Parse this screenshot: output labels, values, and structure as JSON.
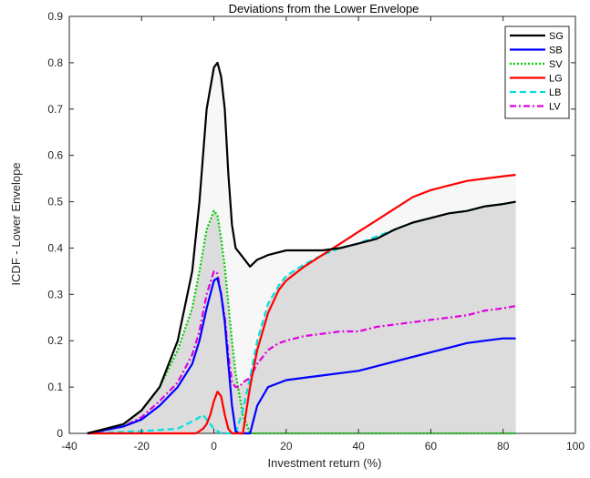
{
  "chart_data": {
    "type": "area",
    "title": "Deviations from the Lower Envelope",
    "xlabel": "Investment return (%)",
    "ylabel": "ICDF - Lower Envelope",
    "xlim": [
      -40,
      100
    ],
    "ylim": [
      0,
      0.9
    ],
    "xticks": [
      -40,
      -20,
      0,
      20,
      40,
      60,
      80,
      100
    ],
    "yticks": [
      0,
      0.1,
      0.2,
      0.3,
      0.4,
      0.5,
      0.6,
      0.7,
      0.8,
      0.9
    ],
    "xtick_labels": [
      "-40",
      "-20",
      "0",
      "20",
      "40",
      "60",
      "80",
      "100"
    ],
    "ytick_labels": [
      "0",
      "0.1",
      "0.2",
      "0.3",
      "0.4",
      "0.5",
      "0.6",
      "0.7",
      "0.8",
      "0.9"
    ],
    "grid": false,
    "legend_position": "top-right",
    "series": [
      {
        "name": "SG",
        "color": "#000000",
        "dash": "solid",
        "x": [
          -35,
          -25,
          -20,
          -15,
          -10,
          -6,
          -4,
          -2,
          0,
          1,
          2,
          3,
          4,
          5,
          6,
          8,
          10,
          12,
          15,
          20,
          25,
          30,
          35,
          40,
          45,
          50,
          55,
          60,
          65,
          70,
          75,
          80,
          83.5
        ],
        "y": [
          0,
          0.02,
          0.05,
          0.1,
          0.2,
          0.35,
          0.5,
          0.7,
          0.79,
          0.8,
          0.77,
          0.7,
          0.56,
          0.45,
          0.4,
          0.38,
          0.36,
          0.375,
          0.385,
          0.395,
          0.395,
          0.395,
          0.4,
          0.41,
          0.42,
          0.44,
          0.455,
          0.465,
          0.475,
          0.48,
          0.49,
          0.495,
          0.5
        ]
      },
      {
        "name": "SB",
        "color": "#0000ff",
        "dash": "solid",
        "x": [
          -35,
          -25,
          -20,
          -15,
          -10,
          -6,
          -4,
          -2,
          0,
          1,
          2,
          3,
          4,
          5,
          6,
          7,
          8,
          10,
          12,
          15,
          20,
          25,
          30,
          35,
          40,
          45,
          50,
          55,
          60,
          65,
          70,
          75,
          80,
          83.5
        ],
        "y": [
          0,
          0.015,
          0.03,
          0.06,
          0.1,
          0.15,
          0.2,
          0.27,
          0.33,
          0.335,
          0.3,
          0.24,
          0.15,
          0.06,
          0.005,
          0,
          0,
          0,
          0.06,
          0.1,
          0.115,
          0.12,
          0.125,
          0.13,
          0.135,
          0.145,
          0.155,
          0.165,
          0.175,
          0.185,
          0.195,
          0.2,
          0.205,
          0.205
        ]
      },
      {
        "name": "SV",
        "color": "#00cc00",
        "dash": "dotted",
        "x": [
          -35,
          -25,
          -20,
          -15,
          -10,
          -6,
          -4,
          -2,
          0,
          1,
          2,
          3,
          4,
          5,
          6,
          8,
          10,
          12,
          20,
          40,
          60,
          83.5
        ],
        "y": [
          0,
          0.02,
          0.05,
          0.1,
          0.18,
          0.27,
          0.35,
          0.44,
          0.48,
          0.47,
          0.42,
          0.36,
          0.28,
          0.2,
          0.13,
          0.04,
          0,
          0,
          0,
          0,
          0,
          0
        ]
      },
      {
        "name": "LG",
        "color": "#ff0000",
        "dash": "solid",
        "x": [
          -35,
          -25,
          -20,
          -10,
          -5,
          -3,
          -2,
          -1,
          0,
          1,
          2,
          3,
          4,
          5,
          6,
          8,
          10,
          12,
          15,
          18,
          20,
          25,
          30,
          35,
          40,
          45,
          50,
          55,
          60,
          65,
          70,
          75,
          80,
          83.5
        ],
        "y": [
          0,
          0,
          0,
          0,
          0,
          0.01,
          0.02,
          0.04,
          0.07,
          0.09,
          0.08,
          0.04,
          0.01,
          0,
          0,
          0,
          0.1,
          0.18,
          0.26,
          0.31,
          0.33,
          0.36,
          0.385,
          0.41,
          0.435,
          0.46,
          0.485,
          0.51,
          0.525,
          0.535,
          0.545,
          0.55,
          0.555,
          0.558
        ]
      },
      {
        "name": "LB",
        "color": "#00e0e0",
        "dash": "dashed",
        "x": [
          -35,
          -20,
          -10,
          -5,
          -3,
          -2,
          0,
          2,
          4,
          6,
          8,
          10,
          12,
          15,
          18,
          20,
          25,
          30,
          35,
          40,
          45,
          50,
          55,
          60,
          65,
          70,
          75,
          80,
          83.5
        ],
        "y": [
          0,
          0.005,
          0.01,
          0.03,
          0.04,
          0.03,
          0.01,
          0,
          0,
          0,
          0.05,
          0.12,
          0.2,
          0.28,
          0.32,
          0.34,
          0.365,
          0.385,
          0.4,
          0.41,
          0.425,
          0.44,
          0.455,
          0.465,
          0.475,
          0.48,
          0.49,
          0.495,
          0.5
        ]
      },
      {
        "name": "LV",
        "color": "#e000e0",
        "dash": "dashdot",
        "x": [
          -35,
          -25,
          -20,
          -15,
          -10,
          -6,
          -4,
          -2,
          0,
          1,
          2,
          3,
          4,
          5,
          6,
          7,
          8,
          10,
          12,
          15,
          18,
          20,
          25,
          30,
          35,
          40,
          45,
          50,
          55,
          60,
          65,
          70,
          75,
          80,
          83.5
        ],
        "y": [
          0,
          0.015,
          0.035,
          0.07,
          0.11,
          0.17,
          0.22,
          0.3,
          0.35,
          0.345,
          0.3,
          0.25,
          0.17,
          0.11,
          0.1,
          0.1,
          0.11,
          0.12,
          0.15,
          0.18,
          0.195,
          0.2,
          0.21,
          0.215,
          0.22,
          0.22,
          0.23,
          0.235,
          0.24,
          0.245,
          0.25,
          0.255,
          0.265,
          0.27,
          0.275
        ]
      }
    ],
    "shaded_regions": {
      "light_fill": "#f7f7f7",
      "dark_fill": "#dcdcdc"
    }
  }
}
